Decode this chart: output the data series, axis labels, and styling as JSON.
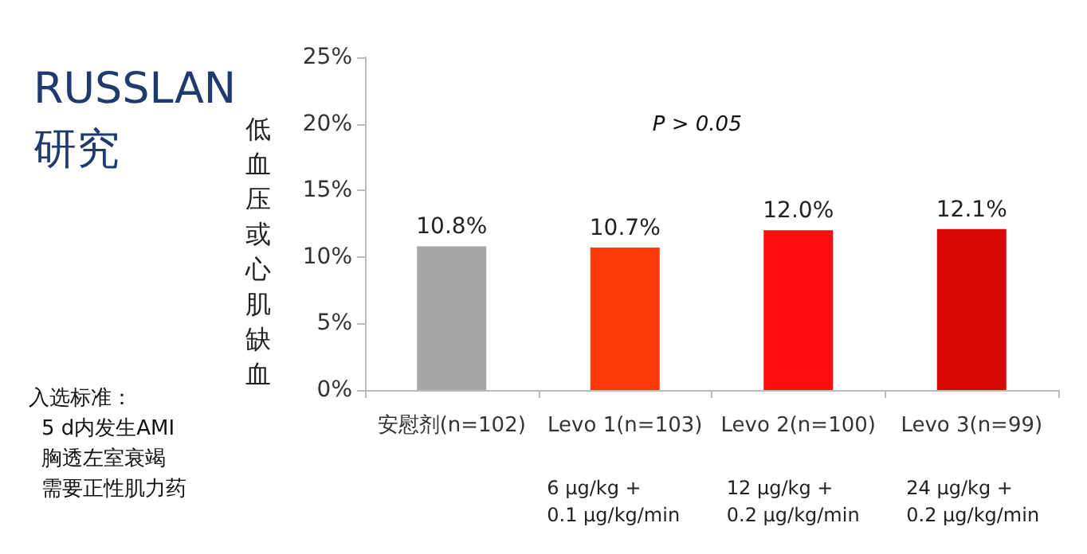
{
  "chart_data": {
    "type": "bar",
    "title": "RUSSLAN 研究",
    "ylabel": "低血压或心肌缺血",
    "categories": [
      "安慰剂(n=102)",
      "Levo 1(n=103)",
      "Levo 2(n=100)",
      "Levo 3(n=99)"
    ],
    "values": [
      10.8,
      10.7,
      12.0,
      12.1
    ],
    "colors": [
      "#a6a6a6",
      "#ff3a0a",
      "#ff0d0d",
      "#d90808"
    ],
    "value_labels": [
      "10.8%",
      "10.7%",
      "12.0%",
      "12.1%"
    ],
    "ylim": [
      0,
      25
    ],
    "yticks": [
      {
        "value": 0,
        "label": "0%"
      },
      {
        "value": 5,
        "label": "5%"
      },
      {
        "value": 10,
        "label": "10%"
      },
      {
        "value": 15,
        "label": "15%"
      },
      {
        "value": 20,
        "label": "20%"
      },
      {
        "value": 25,
        "label": "25%"
      }
    ],
    "grid": false,
    "annotations": [
      "P > 0.05",
      "6 μg/kg +\n0.1 μg/kg/min",
      "12 μg/kg +\n0.2 μg/kg/min",
      "24 μg/kg +\n0.2 μg/kg/min",
      "入选标准：",
      "5 d内发生AMI",
      "胸透左室衰竭",
      "需要正性肌力药"
    ]
  }
}
